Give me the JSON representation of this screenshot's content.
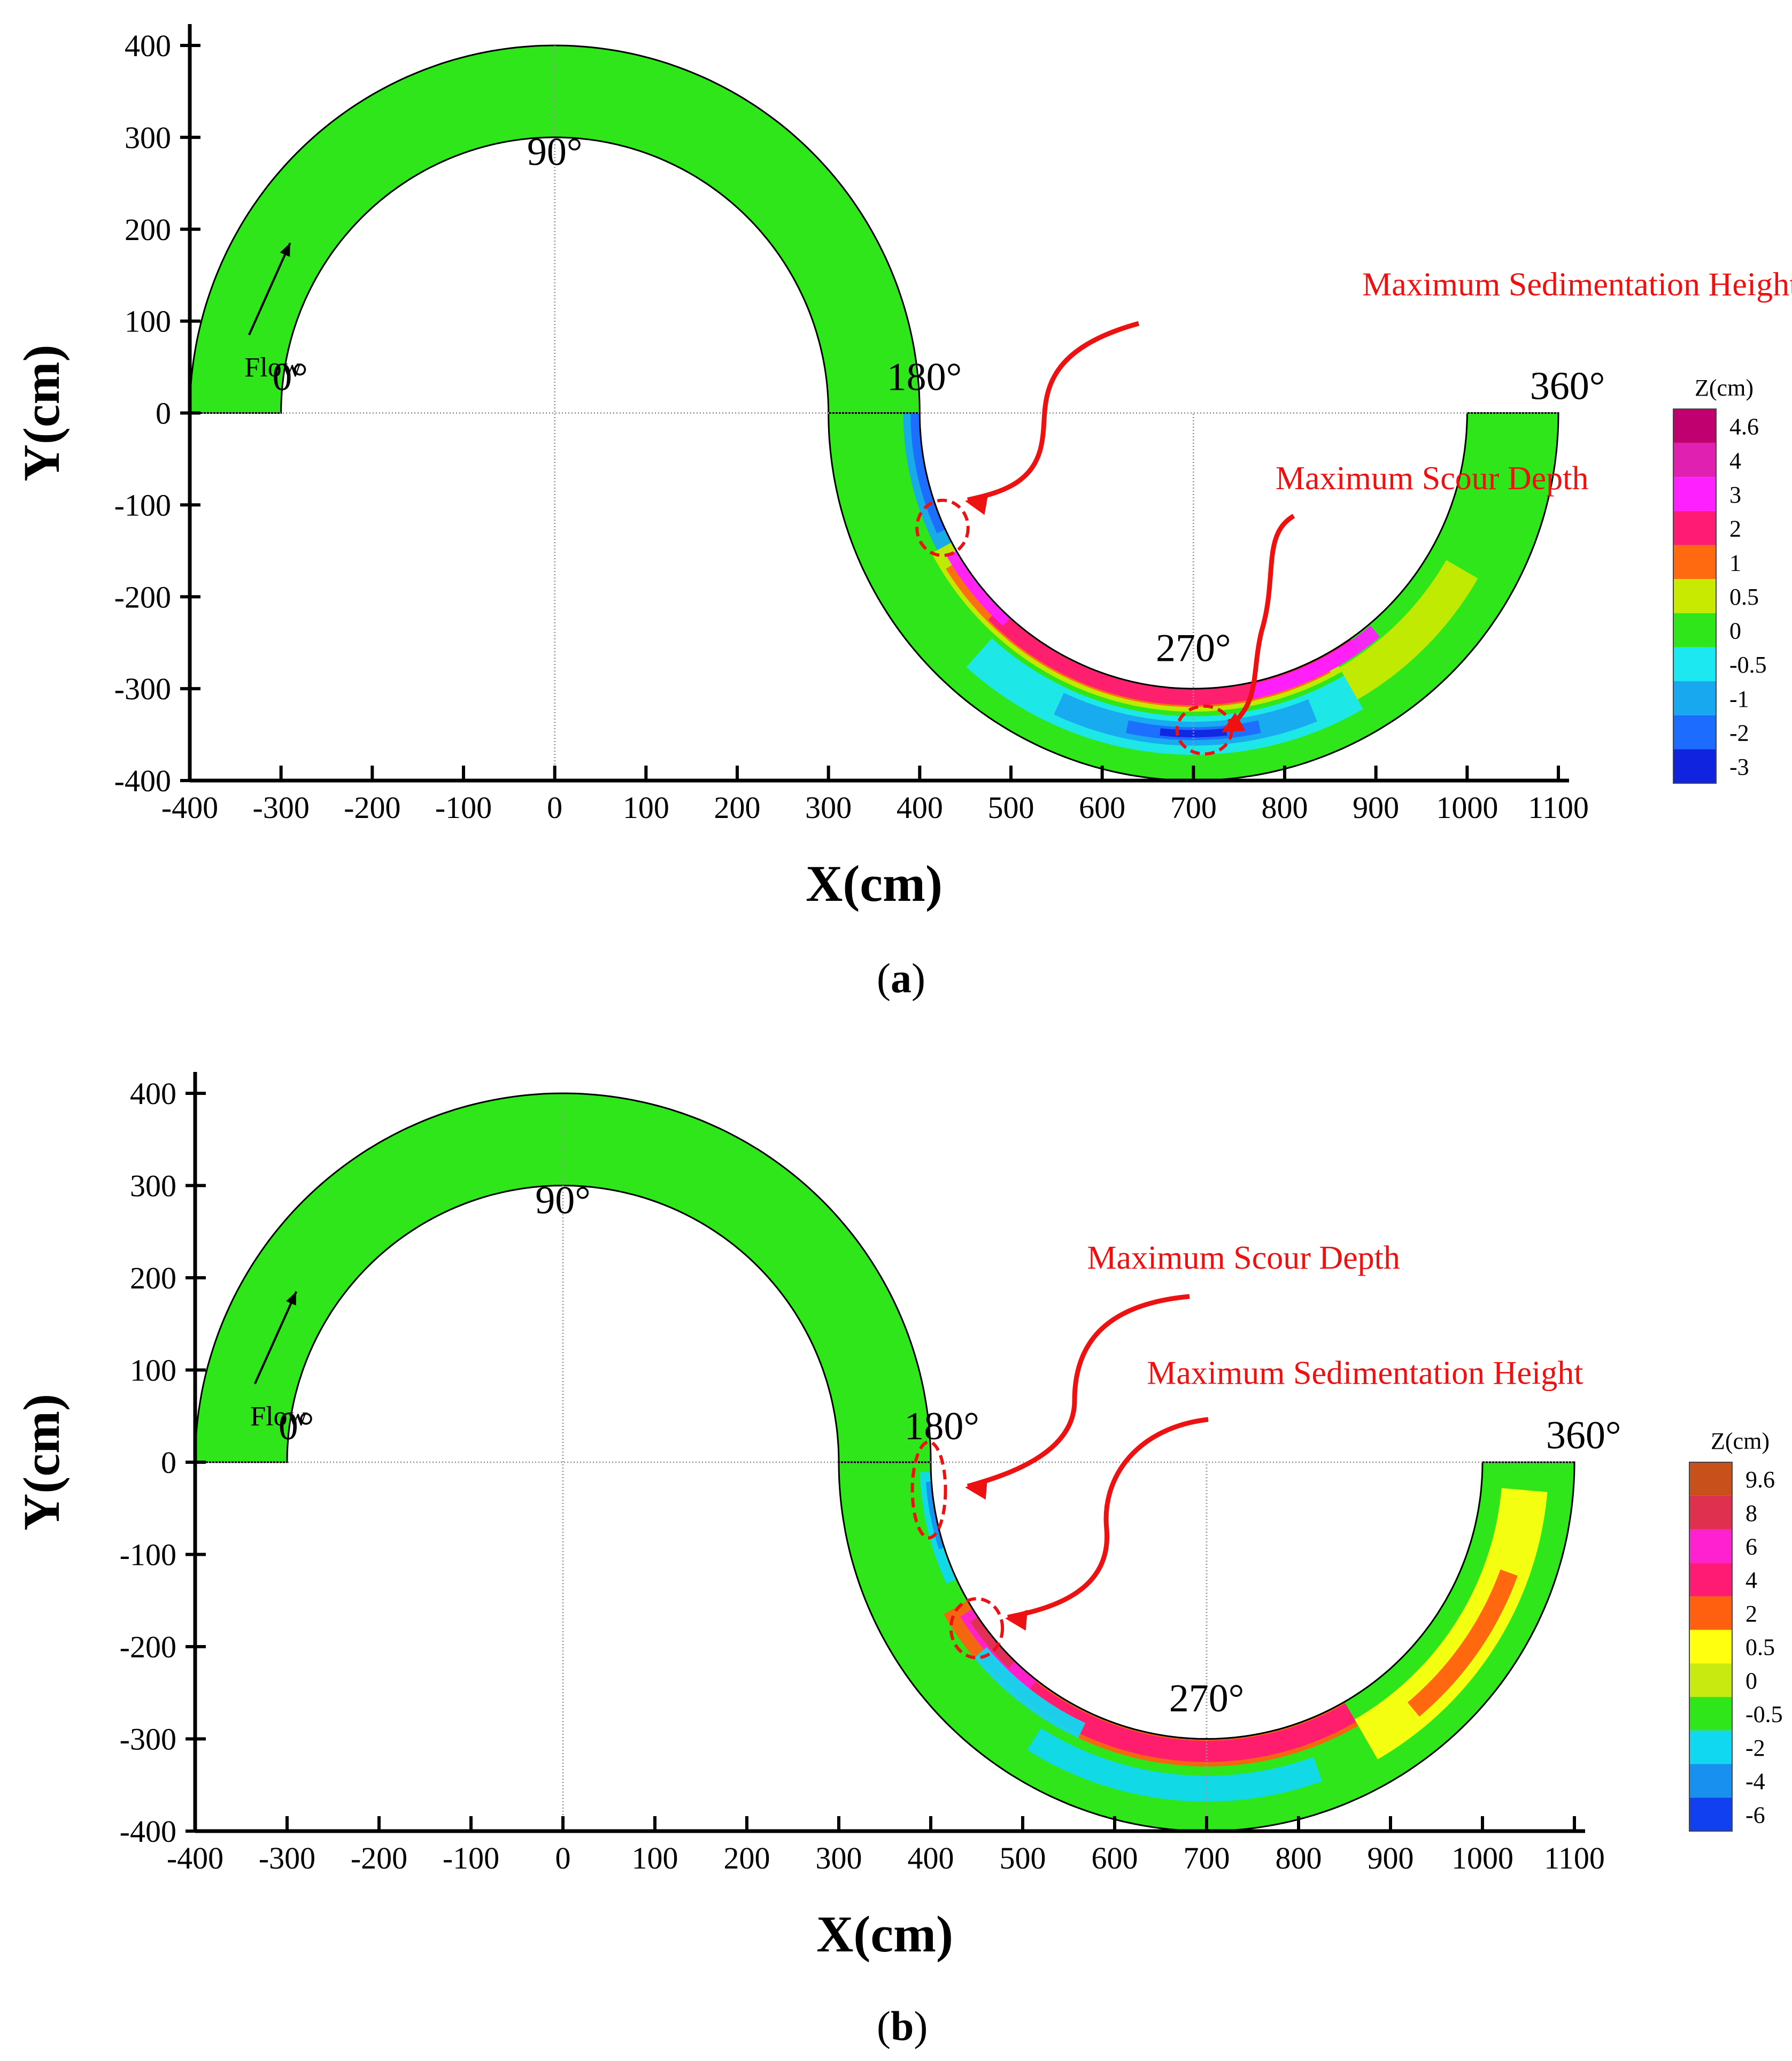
{
  "chart_data": [
    {
      "type": "heatmap",
      "panel_label": "a",
      "xlabel": "X(cm)",
      "ylabel": "Y(cm)",
      "xlim": [
        -400,
        1100
      ],
      "ylim": [
        -400,
        400
      ],
      "xticks": [
        -400,
        -300,
        -200,
        -100,
        0,
        100,
        200,
        300,
        400,
        500,
        600,
        700,
        800,
        900,
        1000,
        1100
      ],
      "yticks": [
        -400,
        -300,
        -200,
        -100,
        0,
        100,
        200,
        300,
        400
      ],
      "grid": "center lines only",
      "channel": {
        "bend1_center": [
          0,
          0
        ],
        "bend2_center": [
          700,
          0
        ],
        "inner_radius": 300,
        "outer_radius": 400
      },
      "angle_labels": [
        {
          "text": "0°",
          "x": -290,
          "y": 25
        },
        {
          "text": "90°",
          "x": 0,
          "y": 270
        },
        {
          "text": "180°",
          "x": 405,
          "y": 25
        },
        {
          "text": "270°",
          "x": 700,
          "y": -270
        },
        {
          "text": "360°",
          "x": 1110,
          "y": 15
        }
      ],
      "flow_label": {
        "text": "Flow",
        "x": -340,
        "y": 40
      },
      "legend": {
        "title": "Z(cm)",
        "levels": [
          "4.6",
          "4",
          "3",
          "2",
          "1",
          "0.5",
          "0",
          "-0.5",
          "-1",
          "-2",
          "-3"
        ],
        "colors": [
          "#c0006f",
          "#e020b0",
          "#ff20ff",
          "#ff1a74",
          "#ff6a10",
          "#c8ea00",
          "#2ee61a",
          "#1ce8f2",
          "#18a8f0",
          "#1c6cff",
          "#1024e0"
        ]
      },
      "annotations": [
        {
          "text": "Maximum Sedimentation Height",
          "x": 885,
          "y": 128
        },
        {
          "text": "Maximum Scour Depth",
          "x": 790,
          "y": -83
        }
      ],
      "bands": [
        {
          "name": "scour-inner-180",
          "center": 1,
          "a0": 180,
          "a1": 215,
          "r0": 300,
          "r1": 318,
          "level": "-1"
        },
        {
          "name": "scour-inner-180b",
          "center": 1,
          "a0": 180,
          "a1": 205,
          "r0": 300,
          "r1": 310,
          "level": "-2"
        },
        {
          "name": "deposit-inner-yellow",
          "center": 1,
          "a0": 208,
          "a1": 300,
          "r0": 300,
          "r1": 325,
          "level": "0.5"
        },
        {
          "name": "deposit-inner-orange",
          "center": 1,
          "a0": 212,
          "a1": 298,
          "r0": 302,
          "r1": 320,
          "level": "1"
        },
        {
          "name": "deposit-inner-pink",
          "center": 1,
          "a0": 225,
          "a1": 305,
          "r0": 300,
          "r1": 318,
          "level": "2"
        },
        {
          "name": "deposit-peak",
          "center": 1,
          "a0": 210,
          "a1": 228,
          "r0": 300,
          "r1": 312,
          "level": "3"
        },
        {
          "name": "deposit-peak2",
          "center": 1,
          "a0": 282,
          "a1": 310,
          "r0": 302,
          "r1": 318,
          "level": "3"
        },
        {
          "name": "scour-mid-cyan",
          "center": 1,
          "a0": 228,
          "a1": 300,
          "r0": 330,
          "r1": 372,
          "level": "-0.5"
        },
        {
          "name": "scour-mid-lightblue",
          "center": 1,
          "a0": 245,
          "a1": 292,
          "r0": 336,
          "r1": 362,
          "level": "-1"
        },
        {
          "name": "scour-deep",
          "center": 1,
          "a0": 258,
          "a1": 282,
          "r0": 342,
          "r1": 356,
          "level": "-2"
        },
        {
          "name": "scour-deepest",
          "center": 1,
          "a0": 264,
          "a1": 276,
          "r0": 345,
          "r1": 353,
          "level": "-3"
        },
        {
          "name": "outer-yellowgreen",
          "center": 1,
          "a0": 300,
          "a1": 330,
          "r0": 320,
          "r1": 360,
          "level": "0.5"
        }
      ],
      "circles": [
        {
          "x": 425,
          "y": -125,
          "rx": 28,
          "ry": 30
        },
        {
          "x": 712,
          "y": -345,
          "rx": 30,
          "ry": 26
        }
      ]
    },
    {
      "type": "heatmap",
      "panel_label": "b",
      "xlabel": "X(cm)",
      "ylabel": "Y(cm)",
      "xlim": [
        -400,
        1100
      ],
      "ylim": [
        -400,
        400
      ],
      "xticks": [
        -400,
        -300,
        -200,
        -100,
        0,
        100,
        200,
        300,
        400,
        500,
        600,
        700,
        800,
        900,
        1000,
        1100
      ],
      "yticks": [
        -400,
        -300,
        -200,
        -100,
        0,
        100,
        200,
        300,
        400
      ],
      "grid": "center lines only",
      "channel": {
        "bend1_center": [
          0,
          0
        ],
        "bend2_center": [
          700,
          0
        ],
        "inner_radius": 300,
        "outer_radius": 400
      },
      "angle_labels": [
        {
          "text": "0°",
          "x": -290,
          "y": 25
        },
        {
          "text": "90°",
          "x": 0,
          "y": 270
        },
        {
          "text": "180°",
          "x": 412,
          "y": 25
        },
        {
          "text": "270°",
          "x": 700,
          "y": -270
        },
        {
          "text": "360°",
          "x": 1110,
          "y": 15
        }
      ],
      "flow_label": {
        "text": "Flow",
        "x": -340,
        "y": 40
      },
      "legend": {
        "title": "Z(cm)",
        "levels": [
          "9.6",
          "8",
          "6",
          "4",
          "2",
          "0.5",
          "0",
          "-0.5",
          "-2",
          "-4",
          "-6"
        ],
        "colors": [
          "#c8501a",
          "#e03050",
          "#ff20d0",
          "#ff1a74",
          "#ff6010",
          "#ffff10",
          "#c8ea10",
          "#2ee61a",
          "#10d8f0",
          "#1890f0",
          "#1040f0"
        ]
      },
      "annotations": [
        {
          "text": "Maximum Scour Depth",
          "x": 570,
          "y": 210
        },
        {
          "text": "Maximum Sedimentation Height",
          "x": 635,
          "y": 85
        }
      ],
      "bands": [
        {
          "name": "scour-inner-180-cyan",
          "center": 1,
          "a0": 180,
          "a1": 232,
          "r0": 300,
          "r1": 320,
          "level": "-0.5"
        },
        {
          "name": "scour-inner-180-blue",
          "center": 1,
          "a0": 182,
          "a1": 205,
          "r0": 300,
          "r1": 312,
          "level": "-2"
        },
        {
          "name": "scour-inner-180-deep",
          "center": 1,
          "a0": 184,
          "a1": 198,
          "r0": 300,
          "r1": 306,
          "level": "-4"
        },
        {
          "name": "deposit-yellow",
          "center": 1,
          "a0": 210,
          "a1": 300,
          "r0": 300,
          "r1": 330,
          "level": "2"
        },
        {
          "name": "deposit-orange",
          "center": 1,
          "a0": 220,
          "a1": 300,
          "r0": 302,
          "r1": 325,
          "level": "4"
        },
        {
          "name": "deposit-pink",
          "center": 1,
          "a0": 212,
          "a1": 232,
          "r0": 300,
          "r1": 316,
          "level": "6"
        },
        {
          "name": "deposit-magenta",
          "center": 1,
          "a0": 214,
          "a1": 226,
          "r0": 300,
          "r1": 310,
          "level": "8"
        },
        {
          "name": "scour-outer-cyan",
          "center": 1,
          "a0": 222,
          "a1": 300,
          "r0": 330,
          "r1": 378,
          "level": "-0.5"
        },
        {
          "name": "scour-outer-blue",
          "center": 1,
          "a0": 238,
          "a1": 290,
          "r0": 340,
          "r1": 368,
          "level": "-2"
        },
        {
          "name": "scour-mid-blue",
          "center": 1,
          "a0": 220,
          "a1": 245,
          "r0": 312,
          "r1": 330,
          "level": "-2"
        },
        {
          "name": "outer-ygreen",
          "center": 1,
          "a0": 300,
          "a1": 355,
          "r0": 322,
          "r1": 372,
          "level": "0.5"
        },
        {
          "name": "outer-yellow",
          "center": 1,
          "a0": 310,
          "a1": 340,
          "r0": 340,
          "r1": 360,
          "level": "2"
        }
      ],
      "circles": [
        {
          "x": 398,
          "y": -30,
          "rx": 18,
          "ry": 52
        },
        {
          "x": 450,
          "y": -180,
          "rx": 28,
          "ry": 32
        }
      ]
    }
  ]
}
